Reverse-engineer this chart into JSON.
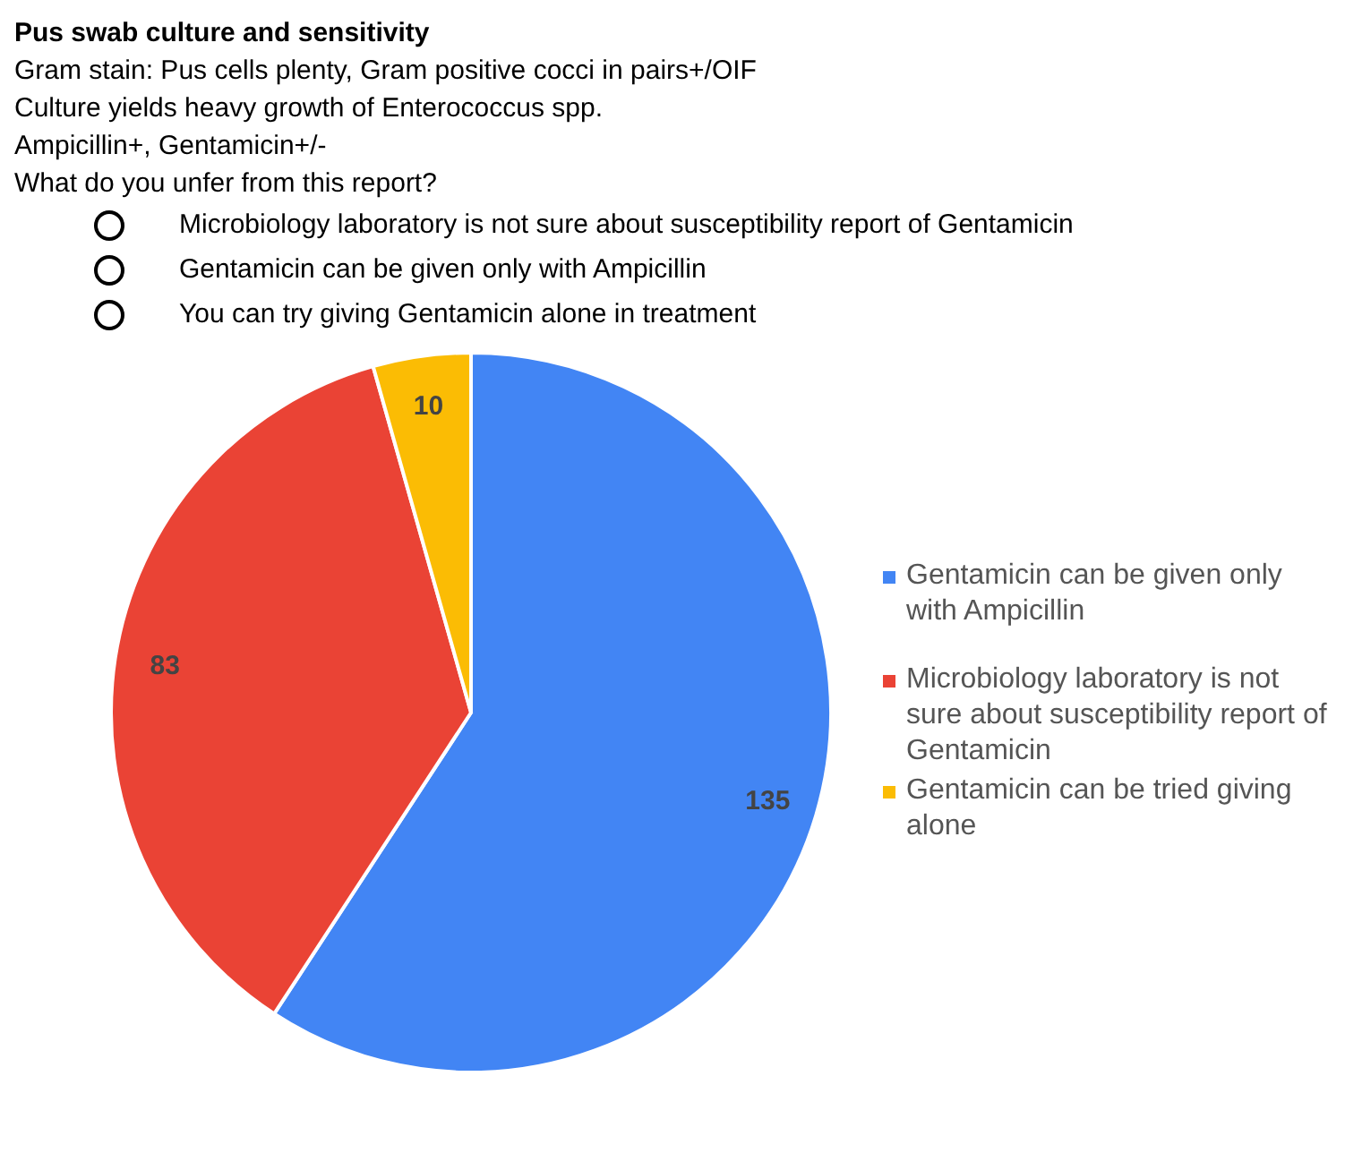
{
  "chart_data": {
    "type": "pie",
    "title": "Pus swab culture and sensitivity",
    "subtitle": "Gram stain: Pus cells plenty, Gram positive cocci in pairs+/OIF",
    "annotations": [
      "Culture yields heavy growth of Enterococcus spp.",
      "Ampicillin+, Gentamicin+/-",
      "What do you unfer from this report?",
      "Microbiology laboratory is not sure about susceptibility report of Gentamicin",
      "Gentamicin can be given only with Ampicillin",
      "You can try giving Gentamicin alone in treatment"
    ],
    "categories": [
      "Gentamicin can be given only with Ampicillin",
      "Microbiology laboratory is not sure about susceptibility report of Gentamicin",
      "Gentamicin can be tried giving alone"
    ],
    "values": [
      135,
      83,
      10
    ],
    "colors": [
      "#4285f4",
      "#ea4335",
      "#fbbc04"
    ],
    "data_labels": true,
    "legend": "right"
  }
}
